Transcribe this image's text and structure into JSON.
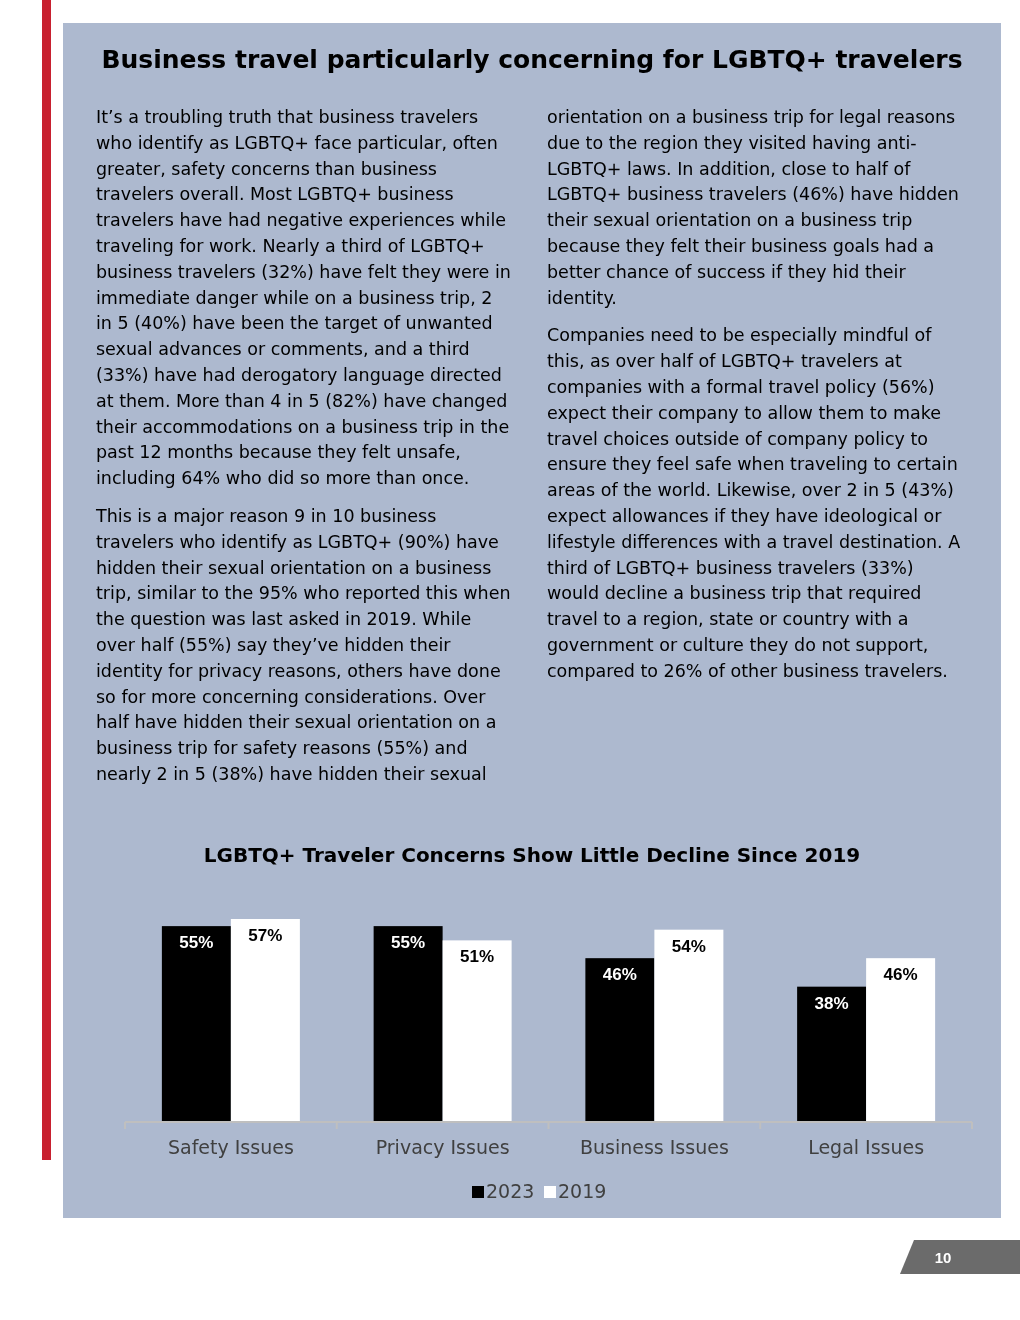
{
  "chart_data": {
    "type": "bar",
    "title": "LGBTQ+ Traveler Concerns Show Little Decline Since 2019",
    "categories": [
      "Safety Issues",
      "Privacy Issues",
      "Business Issues",
      "Legal Issues"
    ],
    "series": [
      {
        "name": "2023",
        "color": "#000000",
        "values": [
          55,
          55,
          46,
          38
        ],
        "value_labels": [
          "55%",
          "55%",
          "46%",
          "38%"
        ]
      },
      {
        "name": "2019",
        "color": "#ffffff",
        "values": [
          57,
          51,
          54,
          46
        ],
        "value_labels": [
          "57%",
          "51%",
          "54%",
          "46%"
        ]
      }
    ],
    "legend": "bottom",
    "annotations": [
      "Business travel particularly concerning for LGBTQ+ travelers",
      "It’s a troubling truth that business travelers who identify as LGBTQ+ face particular, often greater, safety concerns than business travelers overall. Most LGBTQ+ business travelers have had negative experiences while traveling for work. Nearly a third of LGBTQ+ business travelers (32%) have felt they were in immediate danger while on a business trip, 2 in 5 (40%) have been the target of unwanted sexual advances or comments, and a third (33%) have had derogatory language directed at them. More than 4 in 5 (82%) have changed their accommodations on a business trip in the past 12 months because they felt unsafe, including 64% who did so more than once.",
      "This is a major reason 9 in 10 business travelers who identify as LGBTQ+ (90%) have hidden their sexual orientation on a business trip, similar to the 95% who reported this when the question was last asked in 2019. While over half (55%) say they’ve hidden their identity for privacy reasons, others have done so for more concerning considerations. Over half have hidden their sexual orientation on a business trip for safety reasons (55%) and nearly 2 in 5 (38%) have hidden their sexual orientation on a business trip for legal reasons due to the region they visited having anti-LGBTQ+ laws. In addition, close to half of LGBTQ+ business travelers (46%) have hidden their sexual orientation on a business trip because they felt their business goals had a better chance of success if they hid their identity.",
      "Companies need to be especially mindful of this, as over half of LGBTQ+ travelers at companies with a formal travel policy (56%) expect their company to allow them to make travel choices outside of company policy to ensure they feel safe when traveling to certain areas of the world. Likewise, over 2 in 5 (43%) expect allowances if they have ideological or lifestyle differences with a travel destination. A third of LGBTQ+ business travelers (33%) would decline a business trip that required travel to a region, state or country with a government or culture they do not support, compared to 26% of other business travelers.",
      "10"
    ]
  }
}
